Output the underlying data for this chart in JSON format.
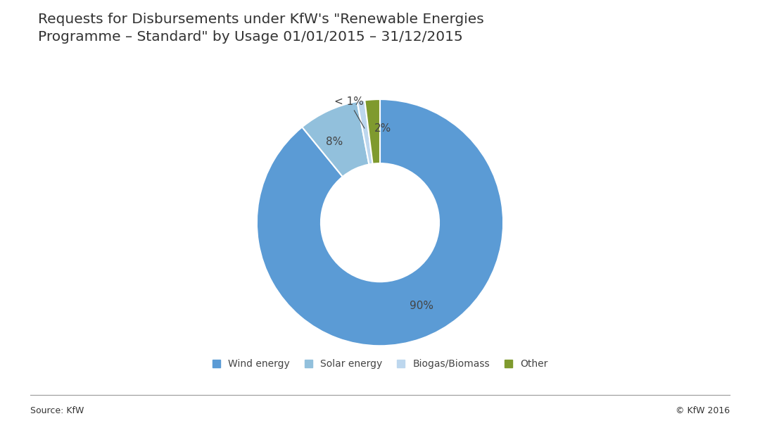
{
  "title": "Requests for Disbursements under KfW's \"Renewable Energies\nProgramme – Standard\" by Usage 01/01/2015 – 31/12/2015",
  "slices": [
    90,
    8,
    1,
    2
  ],
  "labels": [
    "90%",
    "8%",
    "< 1%",
    "2%"
  ],
  "slice_colors": [
    "#5B9BD5",
    "#92C0DC",
    "#BDD7EE",
    "#7F9A2E"
  ],
  "legend_labels": [
    "Wind energy",
    "Solar energy",
    "Biogas/Biomass",
    "Other"
  ],
  "legend_colors": [
    "#5B9BD5",
    "#92C0DC",
    "#BDD7EE",
    "#7F9A2E"
  ],
  "source_text": "Source: KfW",
  "copyright_text": "© KfW 2016",
  "background_color": "#FFFFFF",
  "title_fontsize": 14.5,
  "label_fontsize": 11,
  "legend_fontsize": 10,
  "source_fontsize": 9,
  "donut_width": 0.52,
  "startangle": 90
}
